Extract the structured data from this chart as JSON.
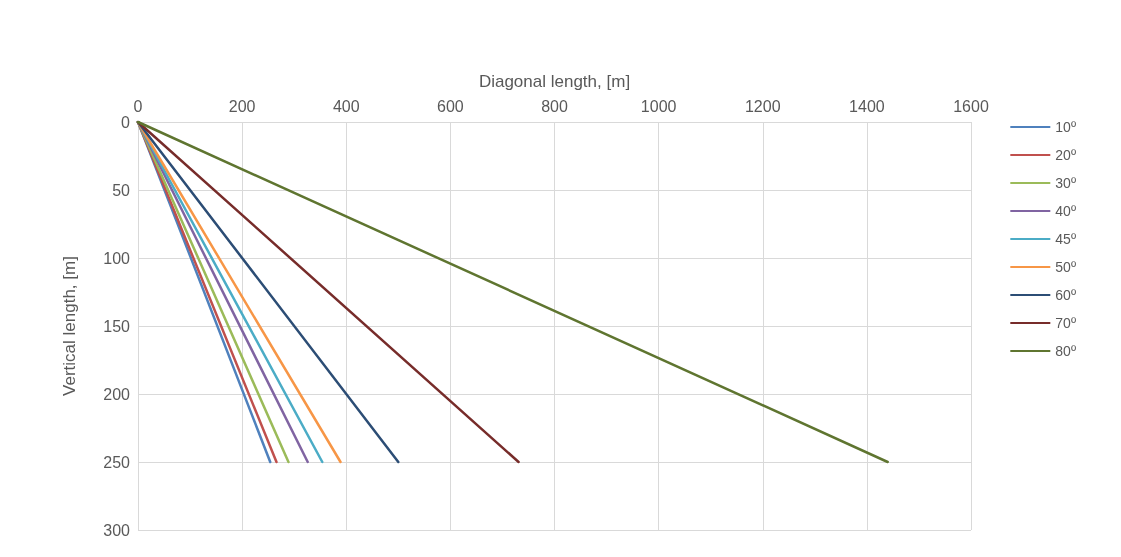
{
  "chart_data": {
    "type": "line",
    "xlabel": "Diagonal length, [m]",
    "ylabel": "Vertical length, [m]",
    "xlim": [
      0,
      1600
    ],
    "xticks": [
      0,
      200,
      400,
      600,
      800,
      1000,
      1200,
      1400,
      1600
    ],
    "ylim": [
      300,
      0
    ],
    "yticks": [
      0,
      50,
      100,
      150,
      200,
      250,
      300
    ],
    "grid": true,
    "legend": "right",
    "marker": "none",
    "line_style": "solid",
    "series": [
      {
        "name": "10º",
        "color": "#4f81bd",
        "x": [
          0,
          254
        ],
        "values": [
          0,
          250
        ]
      },
      {
        "name": "20º",
        "color": "#c0504d",
        "x": [
          0,
          266
        ],
        "values": [
          0,
          250
        ]
      },
      {
        "name": "30º",
        "color": "#9bbb59",
        "x": [
          0,
          289
        ],
        "values": [
          0,
          250
        ]
      },
      {
        "name": "40º",
        "color": "#8064a2",
        "x": [
          0,
          326
        ],
        "values": [
          0,
          250
        ]
      },
      {
        "name": "45º",
        "color": "#4bacc6",
        "x": [
          0,
          354
        ],
        "values": [
          0,
          250
        ]
      },
      {
        "name": "50º",
        "color": "#f79646",
        "x": [
          0,
          389
        ],
        "values": [
          0,
          250
        ]
      },
      {
        "name": "60º",
        "color": "#2c4d75",
        "x": [
          0,
          500
        ],
        "values": [
          0,
          250
        ]
      },
      {
        "name": "70º",
        "color": "#772c2a",
        "x": [
          0,
          731
        ],
        "values": [
          0,
          250
        ]
      },
      {
        "name": "80º",
        "color": "#5f7530",
        "x": [
          0,
          1440
        ],
        "values": [
          0,
          250
        ]
      }
    ]
  }
}
